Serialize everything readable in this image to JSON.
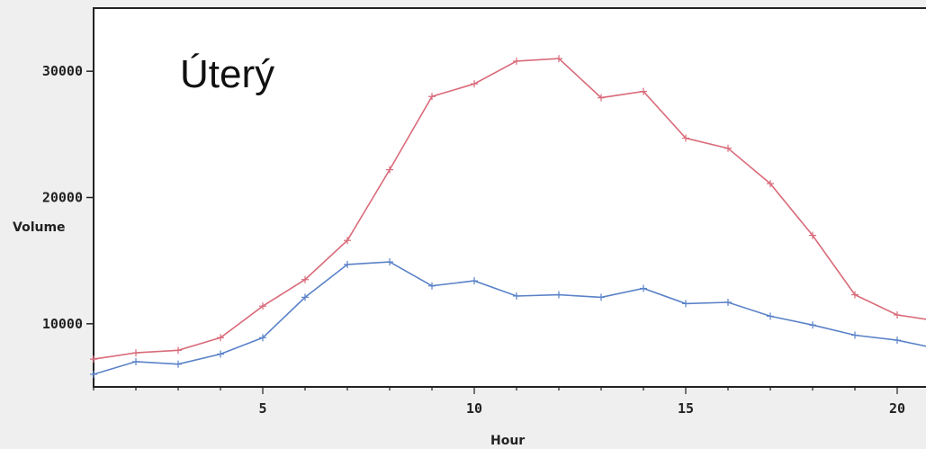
{
  "chart_data": {
    "type": "line",
    "title": "Úterý",
    "xlabel": "Hour",
    "ylabel": "Volume",
    "xlim": [
      1,
      21
    ],
    "ylim": [
      5000,
      35000
    ],
    "x_ticks": [
      5,
      10,
      15,
      20
    ],
    "y_ticks": [
      10000,
      20000,
      30000
    ],
    "x": [
      1,
      2,
      3,
      4,
      5,
      6,
      7,
      8,
      9,
      10,
      11,
      12,
      13,
      14,
      15,
      16,
      17,
      18,
      19,
      20,
      21
    ],
    "series": [
      {
        "color": "#d96b7a",
        "values": [
          7200,
          7700,
          7900,
          8900,
          11400,
          13500,
          16600,
          22200,
          28000,
          29000,
          30800,
          31000,
          27900,
          28400,
          24700,
          23900,
          21100,
          17000,
          12300,
          10700,
          10200
        ]
      },
      {
        "color": "#5a82c8",
        "values": [
          6000,
          7000,
          6800,
          7600,
          8900,
          12100,
          14700,
          14900,
          13000,
          13400,
          12200,
          12300,
          12100,
          12800,
          11600,
          11700,
          10600,
          9900,
          9100,
          8700,
          8000
        ]
      }
    ]
  }
}
